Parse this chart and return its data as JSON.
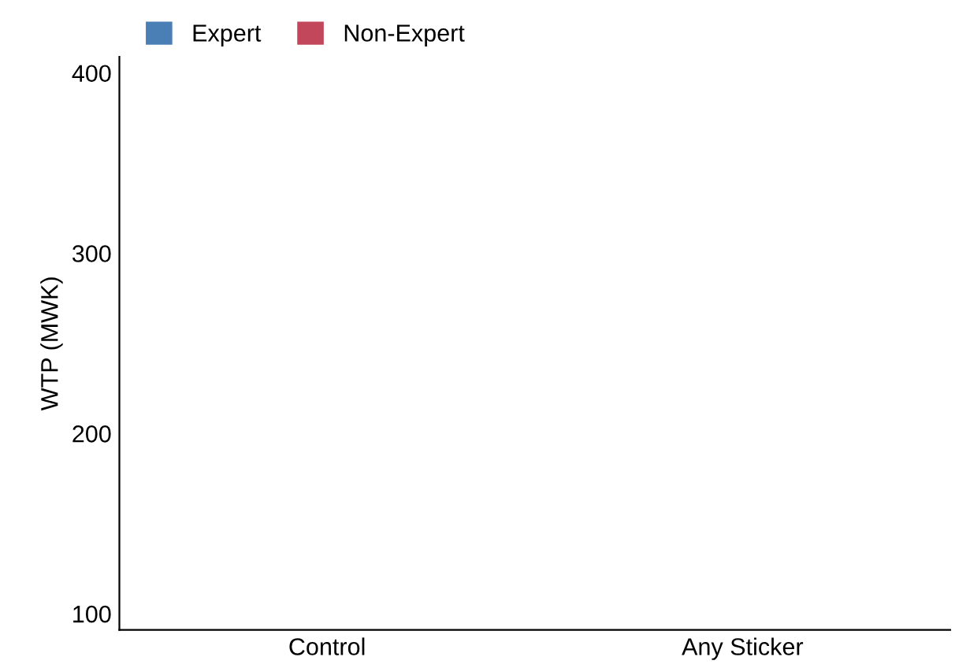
{
  "chart_data": {
    "type": "bar",
    "ylabel": "WTP (MWK)",
    "categories": [
      "Control",
      "Any Sticker"
    ],
    "series": [
      {
        "name": "Expert",
        "color": "#4a7fb5",
        "values": [
          null,
          null
        ]
      },
      {
        "name": "Non-Expert",
        "color": "#c2475a",
        "values": [
          null,
          null
        ]
      }
    ],
    "ylim": [
      91,
      409
    ],
    "yticks": [
      100,
      200,
      300,
      400
    ],
    "grid": false,
    "legend": "top left"
  }
}
